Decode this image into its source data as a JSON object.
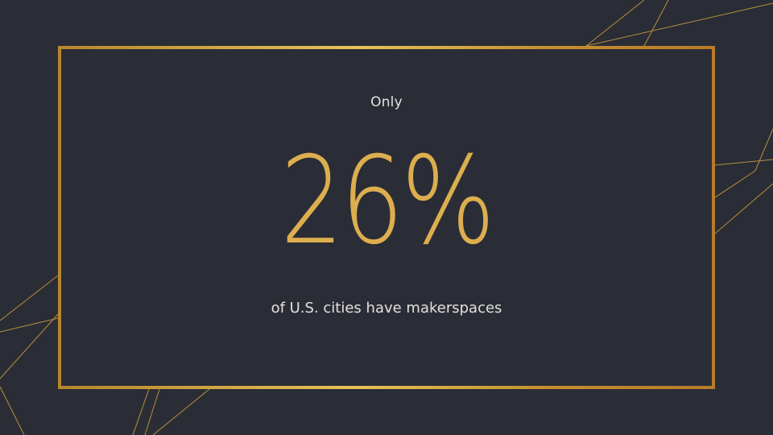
{
  "slide": {
    "kicker": "Only",
    "stat": "26%",
    "caption": "of U.S. cities have makerspaces"
  },
  "colors": {
    "background": "#2a2d36",
    "accent_gold": "#dcae4e",
    "text_light": "#e4e1da"
  }
}
